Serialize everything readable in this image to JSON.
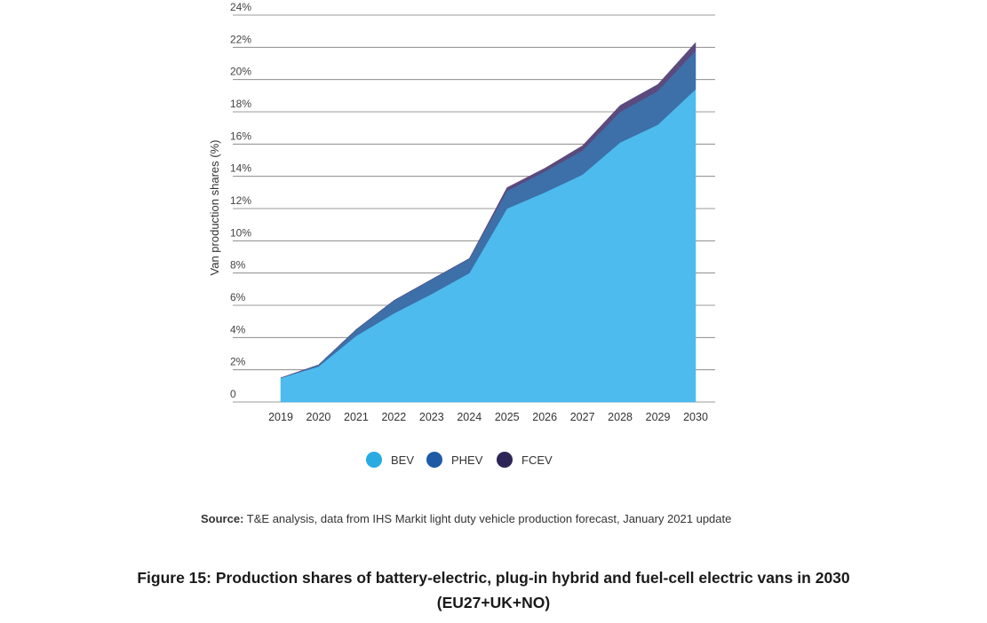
{
  "chart_data": {
    "type": "area",
    "stacked": true,
    "x": [
      "2019",
      "2020",
      "2021",
      "2022",
      "2023",
      "2024",
      "2025",
      "2026",
      "2027",
      "2028",
      "2029",
      "2030"
    ],
    "series": [
      {
        "name": "BEV",
        "color": "#4dbbed",
        "values": [
          1.5,
          2.2,
          4.1,
          5.5,
          6.7,
          8.0,
          12.0,
          13.0,
          14.1,
          16.1,
          17.2,
          19.4
        ]
      },
      {
        "name": "PHEV",
        "color": "#3d6fa8",
        "values": [
          0,
          0.1,
          0.4,
          0.8,
          0.9,
          0.9,
          1.1,
          1.3,
          1.5,
          1.9,
          2.1,
          2.4
        ]
      },
      {
        "name": "FCEV",
        "color": "#5a4a7d",
        "values": [
          0,
          0,
          0,
          0,
          0,
          0,
          0.2,
          0.2,
          0.3,
          0.4,
          0.4,
          0.5
        ]
      }
    ],
    "y_ticks": [
      "0",
      "2%",
      "4%",
      "6%",
      "8%",
      "10%",
      "12%",
      "14%",
      "16%",
      "18%",
      "20%",
      "22%",
      "24%"
    ],
    "ylim": [
      0,
      24
    ],
    "xlabel": "",
    "ylabel": "Van production shares (%)",
    "grid": true,
    "legend_position": "bottom-center"
  },
  "legend": {
    "items": [
      {
        "label": "BEV",
        "color": "#29abe2"
      },
      {
        "label": "PHEV",
        "color": "#1f5aa6"
      },
      {
        "label": "FCEV",
        "color": "#2e2557"
      }
    ]
  },
  "source": {
    "label": "Source:",
    "text": "T&E analysis, data from IHS Markit light duty vehicle production forecast, January 2021 update"
  },
  "caption": {
    "line1": "Figure 15: Production shares of battery-electric, plug-in hybrid and fuel-cell electric vans in 2030",
    "line2": "(EU27+UK+NO)"
  }
}
